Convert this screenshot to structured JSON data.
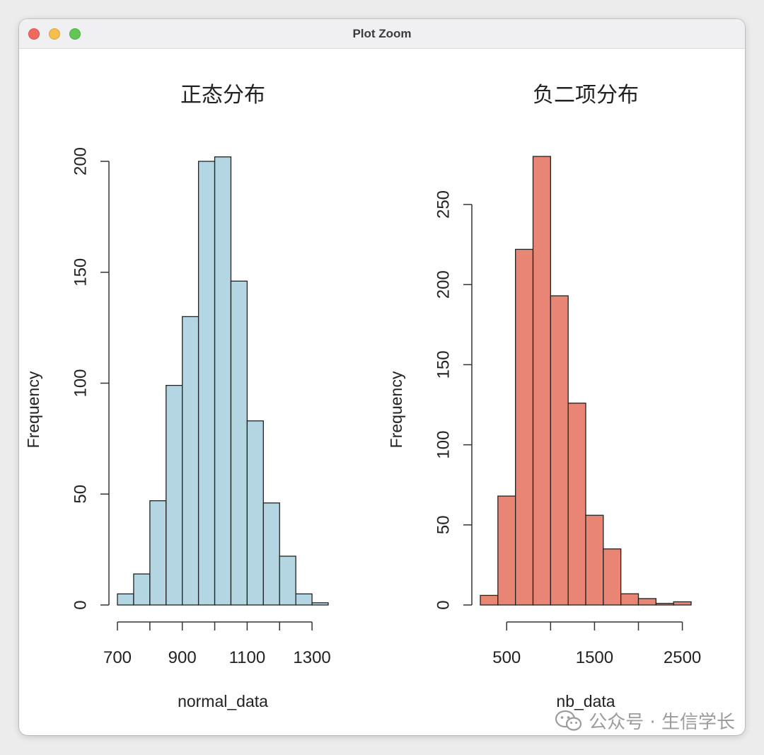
{
  "window": {
    "title": "Plot Zoom"
  },
  "watermark": {
    "text": "公众号 · 生信学长"
  },
  "colors": {
    "normal_fill": "#b3d6e2",
    "nb_fill": "#e88574",
    "axis": "#333333"
  },
  "icons": {
    "watermark": "wechat-icon"
  },
  "chart_data": [
    {
      "type": "bar",
      "title": "正态分布",
      "xlabel": "normal_data",
      "ylabel": "Frequency",
      "bin_edges": [
        700,
        750,
        800,
        850,
        900,
        950,
        1000,
        1050,
        1100,
        1150,
        1200,
        1250,
        1300,
        1350
      ],
      "values": [
        5,
        14,
        47,
        99,
        130,
        200,
        202,
        146,
        83,
        46,
        22,
        5,
        1
      ],
      "xticks": [
        700,
        800,
        900,
        1000,
        1100,
        1200,
        1300
      ],
      "xtick_labels": [
        "700",
        "900",
        "1100",
        "1300"
      ],
      "yticks": [
        0,
        50,
        100,
        150,
        200
      ],
      "ylim": [
        0,
        200
      ],
      "fill": "#b3d6e2"
    },
    {
      "type": "bar",
      "title": "负二项分布",
      "xlabel": "nb_data",
      "ylabel": "Frequency",
      "bin_edges": [
        200,
        400,
        600,
        800,
        1000,
        1200,
        1400,
        1600,
        1800,
        2000,
        2200,
        2400,
        2600
      ],
      "values": [
        6,
        68,
        222,
        280,
        193,
        126,
        56,
        35,
        7,
        4,
        1,
        2
      ],
      "xticks": [
        500,
        1000,
        1500,
        2000,
        2500
      ],
      "xtick_labels": [
        "500",
        "1500",
        "2500"
      ],
      "yticks": [
        0,
        50,
        100,
        150,
        200,
        250
      ],
      "ylim": [
        0,
        250
      ],
      "fill": "#e88574"
    }
  ]
}
